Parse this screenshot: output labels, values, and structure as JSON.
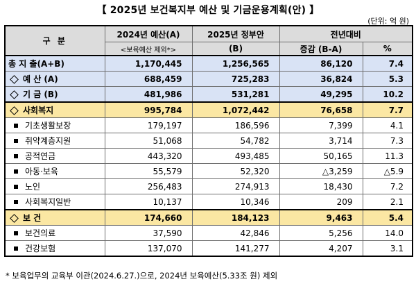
{
  "title": "【 2025년 보건복지부 예산 및 기금운용계획(안) 】",
  "unit": "(단위: 억 원)",
  "header": {
    "category": "구 분",
    "col2024": "2024년 예산(A)",
    "col2024_sub": "<보육예산 제외*>",
    "col2025": "2025년 정부안",
    "col2025_sub": "(B)",
    "yoy": "전년대비",
    "change": "증감 (B-A)",
    "pct": "%"
  },
  "rows": [
    {
      "label": "총 지 출(A+B)",
      "v2024": "1,170,445",
      "v2025": "1,256,565",
      "change": "86,120",
      "pct": "7.4"
    },
    {
      "label": "예 산 (A)",
      "v2024": "688,459",
      "v2025": "725,283",
      "change": "36,824",
      "pct": "5.3"
    },
    {
      "label": "기 금 (B)",
      "v2024": "481,986",
      "v2025": "531,281",
      "change": "49,295",
      "pct": "10.2"
    },
    {
      "label": "사회복지",
      "v2024": "995,784",
      "v2025": "1,072,442",
      "change": "76,658",
      "pct": "7.7"
    },
    {
      "label": "기초생활보장",
      "v2024": "179,197",
      "v2025": "186,596",
      "change": "7,399",
      "pct": "4.1"
    },
    {
      "label": "취약계층지원",
      "v2024": "51,068",
      "v2025": "54,782",
      "change": "3,714",
      "pct": "7.3"
    },
    {
      "label": "공적연금",
      "v2024": "443,320",
      "v2025": "493,485",
      "change": "50,165",
      "pct": "11.3"
    },
    {
      "label": "아동·보육",
      "v2024": "55,579",
      "v2025": "52,320",
      "change": "△3,259",
      "pct": "△5.9"
    },
    {
      "label": "노인",
      "v2024": "256,483",
      "v2025": "274,913",
      "change": "18,430",
      "pct": "7.2"
    },
    {
      "label": "사회복지일반",
      "v2024": "10,137",
      "v2025": "10,346",
      "change": "209",
      "pct": "2.1"
    },
    {
      "label": "보 건",
      "v2024": "174,660",
      "v2025": "184,123",
      "change": "9,463",
      "pct": "5.4"
    },
    {
      "label": "보건의료",
      "v2024": "37,590",
      "v2025": "42,846",
      "change": "5,256",
      "pct": "14.0"
    },
    {
      "label": "건강보험",
      "v2024": "137,070",
      "v2025": "141,277",
      "change": "4,207",
      "pct": "3.1"
    }
  ],
  "note": "* 보육업무의 교육부 이관(2024.6.27.)으로, 2024년 보육예산(5.33조 원) 제외",
  "colors": {
    "header_gray": "#dcdcdc",
    "highlight_blue": "#d9e3f5",
    "highlight_yellow": "#fbe7a3"
  }
}
